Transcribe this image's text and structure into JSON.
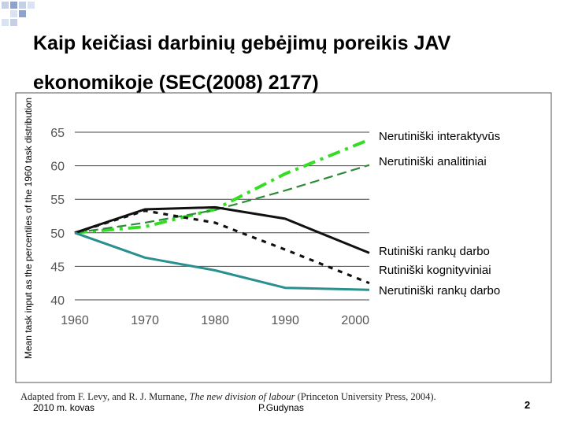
{
  "slide": {
    "title_bold_1": "Kaip keičiasi darbinių gebėjimų poreikis JAV",
    "title_bold_2": "ekonomikoje",
    "title_ref": " (SEC(2008) 2177)",
    "source_prefix": "Adapted from F. Levy, and R. J. Murnane, ",
    "source_italic": "The new division of labour",
    "source_suffix": " (Princeton University Press, 2004).",
    "footer_date": "2010 m. kovas",
    "footer_author": "P.Gudynas",
    "page_number": "2",
    "accent_color": "#9bbb59"
  },
  "chart_data": {
    "type": "line",
    "ylabel": "Mean task input as the percentiles of the 1960 task distribution",
    "x": [
      1960,
      1970,
      1980,
      1990,
      2000
    ],
    "xlim": [
      1960,
      2002
    ],
    "ylim": [
      40,
      65
    ],
    "yticks": [
      40,
      45,
      50,
      55,
      60,
      65
    ],
    "xticks": [
      1960,
      1970,
      1980,
      1990,
      2000
    ],
    "series": [
      {
        "name": "Nerutiniški interaktyvūs",
        "color": "#33dd22",
        "style": "dashdot-thick",
        "x": [
          1960,
          1970,
          1980,
          1990,
          2002
        ],
        "values": [
          50,
          50.9,
          53.5,
          58.8,
          63.9
        ]
      },
      {
        "name": "Nerutiniški analitiniai",
        "color": "#2e8b3a",
        "style": "dashed",
        "x": [
          1960,
          1970,
          1980,
          1990,
          2002
        ],
        "values": [
          50,
          51.5,
          53.4,
          56.3,
          60.1
        ]
      },
      {
        "name": "Rutiniški rankų darbo",
        "color": "#111111",
        "style": "solid",
        "x": [
          1960,
          1970,
          1980,
          1990,
          2002
        ],
        "values": [
          50,
          53.5,
          53.8,
          52.1,
          47.0
        ]
      },
      {
        "name": "Rutiniški kognityviniai",
        "color": "#111111",
        "style": "dotted",
        "x": [
          1960,
          1970,
          1980,
          1990,
          2002
        ],
        "values": [
          50,
          53.3,
          51.5,
          47.5,
          42.5
        ]
      },
      {
        "name": "Nerutiniški rankų darbo",
        "color": "#2a8f8f",
        "style": "solid",
        "x": [
          1960,
          1970,
          1980,
          1990,
          2002
        ],
        "values": [
          50,
          46.3,
          44.4,
          41.8,
          41.5
        ]
      }
    ]
  }
}
